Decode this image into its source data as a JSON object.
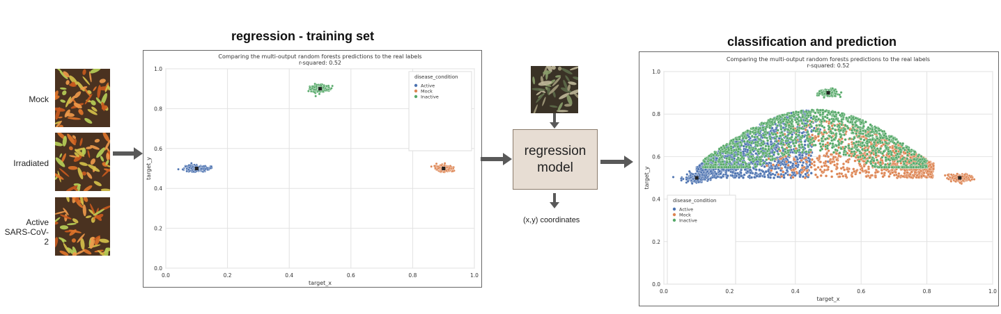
{
  "titles": {
    "training": "regression - training set",
    "classification": "classification and prediction"
  },
  "inputs": {
    "labels": [
      "Mock",
      "Irradiated",
      "Active\nSARS-CoV-2"
    ],
    "thumb_icon": "cell-microscopy-image"
  },
  "model": {
    "label_line1": "regression",
    "label_line2": "model",
    "output_label": "(x,y) coordinates",
    "input_icon": "cell-microscopy-image"
  },
  "colors": {
    "active": "#4c72b0",
    "mock": "#dd8452",
    "inactive": "#55a868",
    "arrow": "#595959",
    "model_box": "#e7ddd3"
  },
  "chart_data": [
    {
      "type": "scatter",
      "title": "Comparing the multi-output random forests predictions to the real labels",
      "subtitle": "r-squared: 0.52",
      "xlabel": "target_x",
      "ylabel": "target_y",
      "xlim": [
        0,
        1
      ],
      "ylim": [
        0,
        1
      ],
      "xticks": [
        "0.0",
        "0.2",
        "0.4",
        "0.6",
        "0.8",
        "1.0"
      ],
      "yticks": [
        "0.0",
        "0.2",
        "0.4",
        "0.6",
        "0.8",
        "1.0"
      ],
      "grid": true,
      "legend": {
        "title": "disease_condition",
        "placement": "top-right",
        "entries": [
          "Active",
          "Mock",
          "Inactive"
        ]
      },
      "series": [
        {
          "name": "Active",
          "cluster_center": [
            0.1,
            0.5
          ],
          "spread": [
            0.025,
            0.012
          ]
        },
        {
          "name": "Mock",
          "cluster_center": [
            0.9,
            0.5
          ],
          "spread": [
            0.018,
            0.012
          ]
        },
        {
          "name": "Inactive",
          "cluster_center": [
            0.5,
            0.9
          ],
          "spread": [
            0.02,
            0.012
          ]
        }
      ]
    },
    {
      "type": "scatter",
      "title": "Comparing the multi-output random forests predictions to the real labels",
      "subtitle": "r-squared: 0.52",
      "xlabel": "target_x",
      "ylabel": "target_y",
      "xlim": [
        0,
        1
      ],
      "ylim": [
        0,
        1
      ],
      "xticks": [
        "0.0",
        "0.2",
        "0.4",
        "0.6",
        "0.8",
        "1.0"
      ],
      "yticks": [
        "0.0",
        "0.2",
        "0.4",
        "0.6",
        "0.8",
        "1.0"
      ],
      "grid": true,
      "legend": {
        "title": "disease_condition",
        "placement": "lower-left",
        "entries": [
          "Active",
          "Mock",
          "Inactive"
        ]
      },
      "clusters": [
        {
          "name": "Active",
          "center": [
            0.1,
            0.5
          ],
          "spread": [
            0.025,
            0.014
          ]
        },
        {
          "name": "Mock",
          "center": [
            0.9,
            0.5
          ],
          "spread": [
            0.02,
            0.012
          ]
        },
        {
          "name": "Inactive",
          "center": [
            0.5,
            0.9
          ],
          "spread": [
            0.02,
            0.012
          ]
        }
      ],
      "prediction_cloud": {
        "x_range": [
          0.1,
          0.82
        ],
        "y_range": [
          0.5,
          0.82
        ],
        "active_region_x": [
          0.1,
          0.4
        ],
        "mock_region_x": [
          0.5,
          0.82
        ],
        "inactive_region_y": [
          0.62,
          0.82
        ]
      }
    }
  ]
}
